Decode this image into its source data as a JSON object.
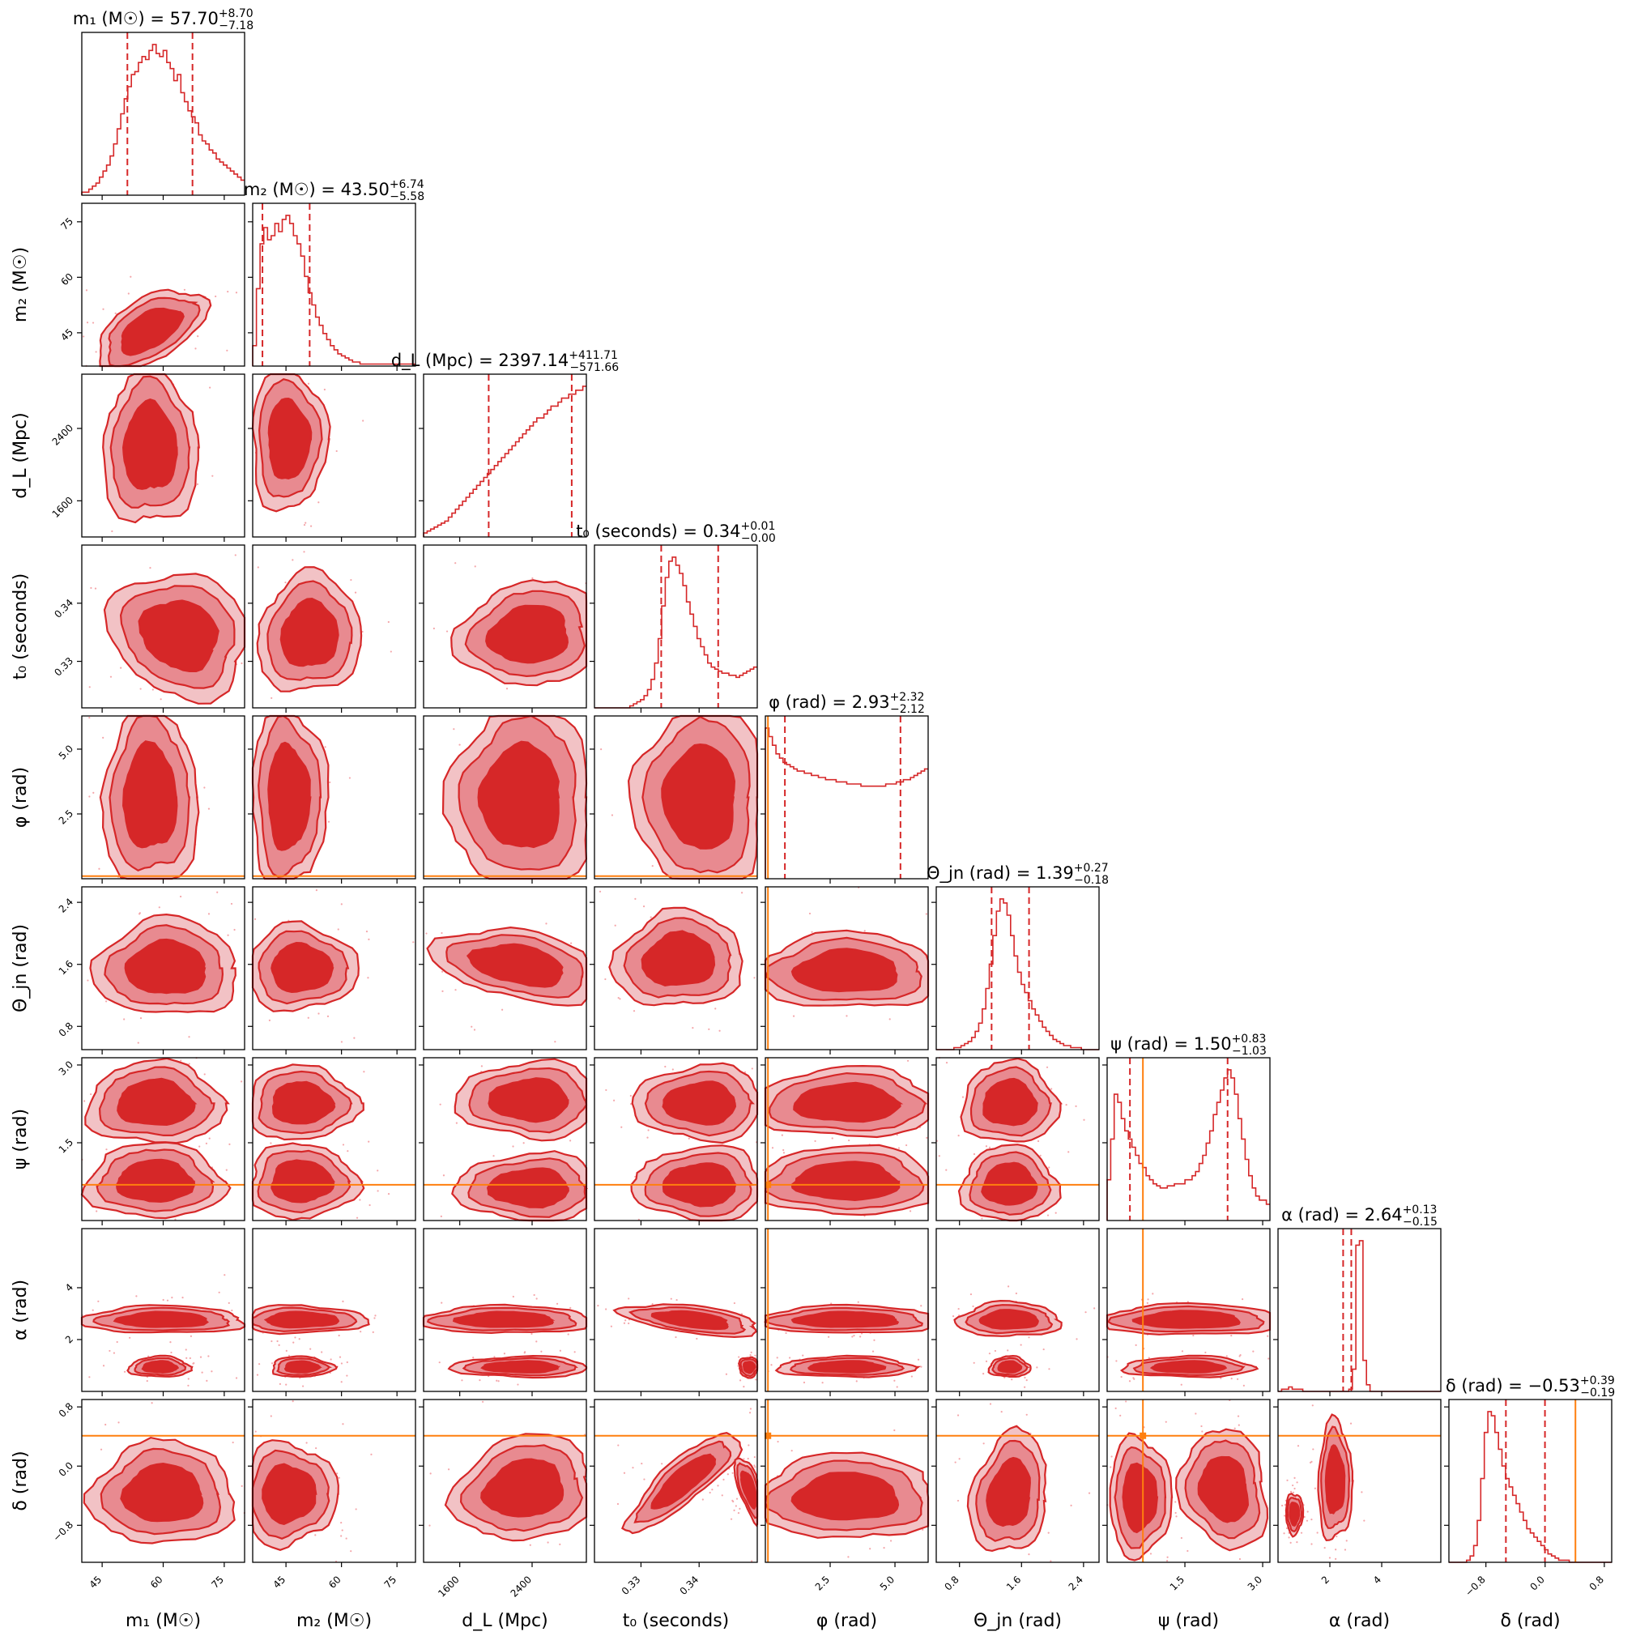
{
  "chart_data": {
    "type": "corner",
    "parameters": [
      {
        "id": "m1",
        "label": "m₁ (M☉)",
        "title_prefix": "m₁ (M☉) = ",
        "median": "57.70",
        "plus": "+8.70",
        "minus": "−7.18",
        "range": [
          40,
          80
        ],
        "ticks": [
          45,
          60,
          75
        ],
        "tick_labels": [
          "45",
          "60",
          "75"
        ],
        "truth": null,
        "hist": [
          1,
          1,
          2,
          3,
          4,
          6,
          8,
          10,
          13,
          17,
          22,
          27,
          32,
          36,
          40,
          41,
          44,
          46,
          45,
          48,
          50,
          47,
          46,
          48,
          44,
          42,
          38,
          40,
          34,
          31,
          28,
          26,
          24,
          20,
          18,
          17,
          15,
          14,
          12,
          11,
          10,
          9,
          8,
          7,
          6,
          5
        ]
      },
      {
        "id": "m2",
        "label": "m₂ (M☉)",
        "title_prefix": "m₂ (M☉) = ",
        "median": "43.50",
        "plus": "+6.74",
        "minus": "−5.58",
        "range": [
          36,
          80
        ],
        "ticks": [
          45,
          60,
          75
        ],
        "tick_labels": [
          "45",
          "60",
          "75"
        ],
        "truth": null,
        "hist": [
          10,
          38,
          60,
          68,
          62,
          64,
          70,
          66,
          72,
          74,
          70,
          64,
          60,
          54,
          44,
          36,
          30,
          24,
          20,
          16,
          13,
          10,
          8,
          6,
          5,
          4,
          3,
          2,
          2,
          1,
          1,
          1,
          1,
          1,
          1,
          1,
          1,
          1,
          1,
          1,
          1,
          1,
          1,
          1
        ]
      },
      {
        "id": "dL",
        "label": "d_L (Mpc)",
        "title_prefix": "d_L (Mpc) = ",
        "median": "2397.14",
        "plus": "+411.71",
        "minus": "−571.66",
        "range": [
          1200,
          3000
        ],
        "ticks": [
          1600,
          2400
        ],
        "tick_labels": [
          "1600",
          "2400"
        ],
        "truth": null,
        "hist": [
          2,
          3,
          4,
          5,
          6,
          7,
          8,
          10,
          12,
          14,
          16,
          18,
          20,
          22,
          24,
          26,
          28,
          30,
          32,
          34,
          36,
          38,
          40,
          42,
          44,
          46,
          48,
          50,
          52,
          54,
          56,
          58,
          60,
          60,
          62,
          64,
          66,
          66,
          68,
          70,
          70,
          72,
          72,
          74,
          74,
          76
        ]
      },
      {
        "id": "t0",
        "label": "t₀ (seconds)",
        "title_prefix": "t₀ (seconds) = ",
        "median": "0.34",
        "plus": "+0.01",
        "minus": "−0.00",
        "range": [
          0.322,
          0.35
        ],
        "ticks": [
          0.33,
          0.34
        ],
        "tick_labels": [
          "0.33",
          "0.34"
        ],
        "truth": null,
        "hist": [
          0,
          0,
          0,
          0,
          0,
          0,
          0,
          0,
          0,
          0,
          1,
          2,
          3,
          4,
          6,
          9,
          14,
          22,
          34,
          50,
          64,
          72,
          74,
          70,
          66,
          60,
          52,
          46,
          40,
          34,
          30,
          26,
          22,
          20,
          19,
          18,
          17,
          17,
          16,
          16,
          15,
          16,
          17,
          18,
          19,
          20
        ]
      },
      {
        "id": "phi",
        "label": "φ (rad)",
        "title_prefix": "φ (rad) = ",
        "median": "2.93",
        "plus": "+2.32",
        "minus": "−2.12",
        "range": [
          0,
          6.28
        ],
        "ticks": [
          2.5,
          5.0
        ],
        "tick_labels": [
          "2.5",
          "5.0"
        ],
        "truth": 0.1,
        "hist": [
          70,
          66,
          62,
          58,
          56,
          54,
          53,
          52,
          51,
          50,
          50,
          49,
          49,
          48,
          48,
          47,
          47,
          46,
          46,
          46,
          45,
          45,
          45,
          44,
          44,
          44,
          44,
          43,
          43,
          43,
          43,
          43,
          43,
          43,
          44,
          44,
          44,
          45,
          45,
          46,
          46,
          47,
          48,
          49,
          50,
          51
        ]
      },
      {
        "id": "theta",
        "label": "Θ_jn (rad)",
        "title_prefix": "Θ_jn (rad) = ",
        "median": "1.39",
        "plus": "+0.27",
        "minus": "−0.18",
        "range": [
          0.5,
          2.6
        ],
        "ticks": [
          0.8,
          1.6,
          2.4
        ],
        "tick_labels": [
          "0.8",
          "1.6",
          "2.4"
        ],
        "truth": null,
        "hist": [
          0,
          0,
          0,
          0,
          0,
          1,
          1,
          2,
          3,
          4,
          6,
          9,
          13,
          20,
          30,
          42,
          56,
          68,
          74,
          72,
          66,
          56,
          46,
          38,
          32,
          28,
          24,
          20,
          17,
          14,
          11,
          9,
          7,
          5,
          4,
          3,
          2,
          2,
          1,
          1,
          1,
          0,
          0,
          0,
          0,
          0
        ]
      },
      {
        "id": "psi",
        "label": "ψ (rad)",
        "title_prefix": "ψ (rad) = ",
        "median": "1.50",
        "plus": "+0.83",
        "minus": "−1.03",
        "range": [
          0,
          3.14
        ],
        "ticks": [
          1.5,
          3.0
        ],
        "tick_labels": [
          "1.5",
          "3.0"
        ],
        "truth": 0.69,
        "hist": [
          20,
          40,
          62,
          58,
          50,
          44,
          40,
          36,
          32,
          28,
          26,
          22,
          20,
          18,
          17,
          16,
          16,
          17,
          17,
          18,
          18,
          18,
          20,
          20,
          22,
          24,
          28,
          32,
          38,
          44,
          52,
          58,
          64,
          70,
          74,
          70,
          62,
          50,
          40,
          30,
          22,
          16,
          12,
          10,
          10,
          8
        ]
      },
      {
        "id": "alpha",
        "label": "α (rad)",
        "title_prefix": "α (rad) = ",
        "median": "2.64",
        "plus": "+0.13",
        "minus": "−0.15",
        "range": [
          0,
          6.28
        ],
        "ticks": [
          2,
          4
        ],
        "tick_labels": [
          "2",
          "4"
        ],
        "truth": null,
        "hist": [
          0,
          1,
          1,
          2,
          1,
          1,
          1,
          0,
          0,
          0,
          0,
          0,
          0,
          0,
          0,
          0,
          0,
          0,
          0,
          0,
          1,
          10,
          66,
          68,
          14,
          3,
          0,
          0,
          0,
          0,
          0,
          0,
          0,
          0,
          0,
          0,
          0,
          0,
          0,
          0,
          0,
          0,
          0,
          0,
          0,
          0
        ]
      },
      {
        "id": "delta",
        "label": "δ (rad)",
        "title_prefix": "δ (rad) = ",
        "median": "−0.53",
        "plus": "+0.39",
        "minus": "−0.19",
        "range": [
          -1.3,
          0.9
        ],
        "ticks": [
          -0.8,
          0.0,
          0.8
        ],
        "tick_labels": [
          "−0.8",
          "0.0",
          "0.8"
        ],
        "truth": 0.41,
        "hist": [
          0,
          0,
          0,
          0,
          0,
          1,
          3,
          8,
          20,
          40,
          62,
          72,
          70,
          62,
          54,
          46,
          40,
          36,
          32,
          28,
          24,
          20,
          16,
          14,
          12,
          10,
          8,
          6,
          4,
          3,
          2,
          1,
          1,
          1,
          0,
          0,
          0,
          0,
          0,
          0,
          0,
          0,
          0,
          0,
          0,
          0
        ]
      }
    ],
    "quantiles": [
      [
        0.28,
        0.68
      ],
      [
        0.06,
        0.35
      ],
      [
        0.4,
        0.91
      ],
      [
        0.41,
        0.76
      ],
      [
        0.12,
        0.83
      ],
      [
        0.34,
        0.57
      ],
      [
        0.14,
        0.74
      ],
      [
        0.4,
        0.45
      ],
      [
        0.35,
        0.59
      ]
    ],
    "colors": {
      "posterior": "#d62728",
      "truth": "#ff7f0e",
      "contour_inner": "#d62728",
      "contour_mid": "#e88a90",
      "contour_outer": "#f2c2c5",
      "scatter": "#f4a6aa"
    },
    "levels": [
      "1σ",
      "2σ",
      "3σ"
    ],
    "grid": false
  }
}
